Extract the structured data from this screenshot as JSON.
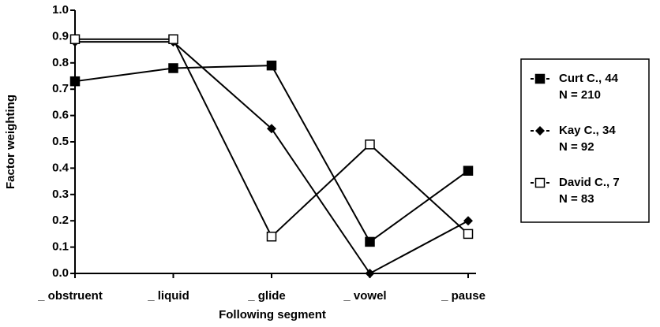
{
  "chart_data": {
    "type": "line",
    "x_label": "Following segment",
    "y_label": "Factor weighting",
    "categories": [
      "_ obstruent",
      "_ liquid",
      "_ glide",
      "_ vowel",
      "_ pause"
    ],
    "series": [
      {
        "name": "Curt C., 44",
        "sample": "N = 210",
        "color": "#000000",
        "marker": "square",
        "values": [
          0.73,
          0.78,
          0.79,
          0.12,
          0.39
        ]
      },
      {
        "name": "Kay C., 34",
        "sample": "N = 92",
        "color": "#000000",
        "marker": "diamond",
        "values": [
          0.88,
          0.88,
          0.55,
          0.0,
          0.2
        ]
      },
      {
        "name": "David C., 7",
        "sample": "N = 83",
        "color": "#000000",
        "marker": "open-square",
        "values": [
          0.89,
          0.89,
          0.14,
          0.49,
          0.15
        ]
      }
    ],
    "ylim": [
      0,
      1
    ],
    "yticks": [
      {
        "value": 0,
        "label": "0.0"
      },
      0.1,
      0.2,
      0.3,
      0.4,
      0.5,
      0.6,
      0.7,
      0.8,
      0.9,
      {
        "value": 1,
        "label": "1.0"
      }
    ],
    "legend": "right"
  }
}
